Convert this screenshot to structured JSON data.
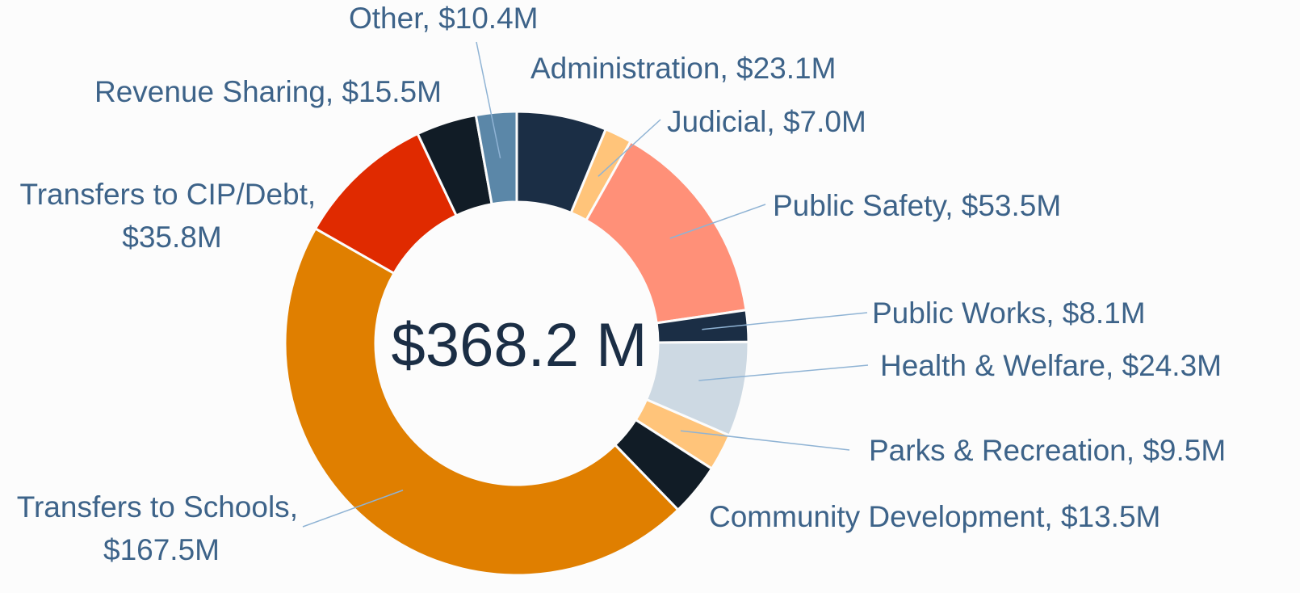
{
  "chart_data": {
    "type": "donut",
    "center_label": "$368.2 M",
    "label_separator": ", ",
    "categories": [
      "Administration",
      "Judicial",
      "Public Safety",
      "Public Works",
      "Health & Welfare",
      "Parks & Recreation",
      "Community Development",
      "Transfers to Schools",
      "Transfers to CIP/Debt",
      "Revenue Sharing",
      "Other"
    ],
    "values": [
      23.1,
      7,
      53.5,
      8.1,
      24.3,
      9.5,
      13.5,
      167.5,
      35.8,
      15.5,
      10.4
    ],
    "value_labels": [
      "$23.1M",
      "$7.0M",
      "$53.5M",
      "$8.1M",
      "$24.3M",
      "$9.5M",
      "$13.5M",
      "$167.5M",
      "$35.8M",
      "$15.5M",
      "$10.4M"
    ],
    "colors": [
      "#1b2e45",
      "#ffc47a",
      "#ff9078",
      "#1b2e45",
      "#cdd9e3",
      "#ffc47a",
      "#111c26",
      "#e07f00",
      "#e02a00",
      "#111c26",
      "#5b87a8"
    ]
  }
}
